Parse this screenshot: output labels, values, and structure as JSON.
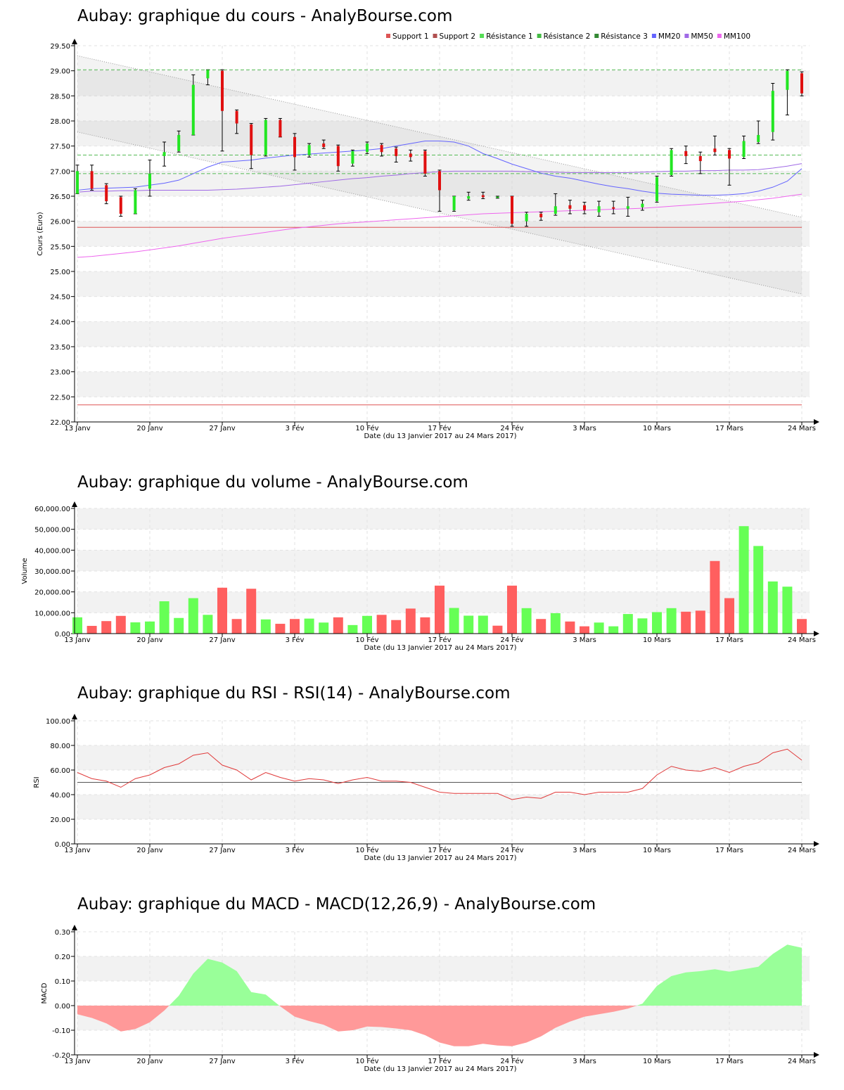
{
  "colors": {
    "up": "#22e622",
    "down": "#e01010",
    "vol_up": "#66ff55",
    "vol_down": "#ff5f5f",
    "rsi_line": "#e03a3a",
    "macd_pos": "#99ff99",
    "macd_neg": "#ff9999",
    "mm20": "#6464ff",
    "mm50": "#a06ae6",
    "mm100": "#ee66ee",
    "support": "#dd5555",
    "resistance": "#55bb55",
    "band": "#f2f2f2"
  },
  "x_axis": {
    "ticks": [
      {
        "label": "13 Janv",
        "i": 0
      },
      {
        "label": "20 Janv",
        "i": 5
      },
      {
        "label": "27 Janv",
        "i": 10
      },
      {
        "label": "3 Fév",
        "i": 15
      },
      {
        "label": "10 Fév",
        "i": 20
      },
      {
        "label": "17 Fév",
        "i": 25
      },
      {
        "label": "24 Fév",
        "i": 30
      },
      {
        "label": "3 Mars",
        "i": 35
      },
      {
        "label": "10 Mars",
        "i": 40
      },
      {
        "label": "17 Mars",
        "i": 45
      },
      {
        "label": "24 Mars",
        "i": 50
      }
    ],
    "label": "Date (du 13 Janvier 2017 au 24 Mars 2017)"
  },
  "legend": [
    {
      "label": "Support 1",
      "color": "#dd5555"
    },
    {
      "label": "Support 2",
      "color": "#b05050"
    },
    {
      "label": "Résistance 1",
      "color": "#55dd55"
    },
    {
      "label": "Résistance 2",
      "color": "#44bb44"
    },
    {
      "label": "Résistance 3",
      "color": "#338833"
    },
    {
      "label": "MM20",
      "color": "#6464ff"
    },
    {
      "label": "MM50",
      "color": "#a06ae6"
    },
    {
      "label": "MM100",
      "color": "#ee66ee"
    }
  ],
  "chart_data": [
    {
      "type": "candlestick",
      "title": "Aubay: graphique du cours - AnalyBourse.com",
      "ylabel": "Cours (Euro)",
      "ylim": [
        22.0,
        29.5
      ],
      "ytick_labels": [
        "22.00",
        "22.50",
        "23.00",
        "23.50",
        "24.00",
        "24.50",
        "25.00",
        "25.50",
        "26.00",
        "26.50",
        "27.00",
        "27.50",
        "28.00",
        "28.50",
        "29.00",
        "29.50"
      ],
      "grid": true,
      "legend_position": "top-right",
      "support_lines": [
        25.88,
        22.34
      ],
      "resistance_lines": [
        29.02,
        27.32,
        26.95
      ],
      "trend_channel": {
        "upper": [
          29.3,
          26.08
        ],
        "lower": [
          27.78,
          24.55
        ]
      },
      "candles": [
        {
          "o": 26.55,
          "h": 27.12,
          "l": 26.55,
          "c": 27.0
        },
        {
          "o": 27.0,
          "h": 27.12,
          "l": 26.62,
          "c": 26.65
        },
        {
          "o": 26.72,
          "h": 26.75,
          "l": 26.35,
          "c": 26.4
        },
        {
          "o": 26.48,
          "h": 26.5,
          "l": 26.1,
          "c": 26.15
        },
        {
          "o": 26.15,
          "h": 26.65,
          "l": 26.15,
          "c": 26.62
        },
        {
          "o": 26.65,
          "h": 27.22,
          "l": 26.5,
          "c": 26.95
        },
        {
          "o": 27.3,
          "h": 27.58,
          "l": 27.1,
          "c": 27.38
        },
        {
          "o": 27.4,
          "h": 27.8,
          "l": 27.38,
          "c": 27.72
        },
        {
          "o": 27.72,
          "h": 28.92,
          "l": 27.72,
          "c": 28.72
        },
        {
          "o": 28.85,
          "h": 29.02,
          "l": 28.72,
          "c": 29.02
        },
        {
          "o": 29.0,
          "h": 29.02,
          "l": 27.4,
          "c": 28.2
        },
        {
          "o": 28.2,
          "h": 28.22,
          "l": 27.75,
          "c": 27.95
        },
        {
          "o": 27.93,
          "h": 27.95,
          "l": 27.05,
          "c": 27.32
        },
        {
          "o": 27.32,
          "h": 28.05,
          "l": 27.3,
          "c": 28.02
        },
        {
          "o": 28.02,
          "h": 28.05,
          "l": 27.68,
          "c": 27.68
        },
        {
          "o": 27.68,
          "h": 27.75,
          "l": 27.02,
          "c": 27.28
        },
        {
          "o": 27.32,
          "h": 27.55,
          "l": 27.28,
          "c": 27.52
        },
        {
          "o": 27.55,
          "h": 27.62,
          "l": 27.45,
          "c": 27.48
        },
        {
          "o": 27.5,
          "h": 27.52,
          "l": 27.0,
          "c": 27.1
        },
        {
          "o": 27.15,
          "h": 27.42,
          "l": 27.1,
          "c": 27.4
        },
        {
          "o": 27.38,
          "h": 27.58,
          "l": 27.35,
          "c": 27.55
        },
        {
          "o": 27.52,
          "h": 27.55,
          "l": 27.3,
          "c": 27.38
        },
        {
          "o": 27.45,
          "h": 27.48,
          "l": 27.18,
          "c": 27.3
        },
        {
          "o": 27.35,
          "h": 27.42,
          "l": 27.2,
          "c": 27.28
        },
        {
          "o": 27.4,
          "h": 27.42,
          "l": 26.9,
          "c": 26.95
        },
        {
          "o": 27.0,
          "h": 27.02,
          "l": 26.2,
          "c": 26.62
        },
        {
          "o": 26.22,
          "h": 26.5,
          "l": 26.2,
          "c": 26.5
        },
        {
          "o": 26.45,
          "h": 26.58,
          "l": 26.42,
          "c": 26.5
        },
        {
          "o": 26.52,
          "h": 26.58,
          "l": 26.45,
          "c": 26.48
        },
        {
          "o": 26.48,
          "h": 26.5,
          "l": 26.46,
          "c": 26.49
        },
        {
          "o": 26.5,
          "h": 26.5,
          "l": 25.9,
          "c": 25.95
        },
        {
          "o": 26.0,
          "h": 26.18,
          "l": 25.9,
          "c": 26.15
        },
        {
          "o": 26.15,
          "h": 26.18,
          "l": 26.02,
          "c": 26.08
        },
        {
          "o": 26.15,
          "h": 26.55,
          "l": 26.12,
          "c": 26.3
        },
        {
          "o": 26.32,
          "h": 26.42,
          "l": 26.15,
          "c": 26.25
        },
        {
          "o": 26.32,
          "h": 26.38,
          "l": 26.15,
          "c": 26.22
        },
        {
          "o": 26.18,
          "h": 26.4,
          "l": 26.1,
          "c": 26.3
        },
        {
          "o": 26.28,
          "h": 26.4,
          "l": 26.15,
          "c": 26.25
        },
        {
          "o": 26.25,
          "h": 26.48,
          "l": 26.1,
          "c": 26.3
        },
        {
          "o": 26.28,
          "h": 26.42,
          "l": 26.22,
          "c": 26.35
        },
        {
          "o": 26.4,
          "h": 26.9,
          "l": 26.38,
          "c": 26.88
        },
        {
          "o": 26.92,
          "h": 27.45,
          "l": 26.9,
          "c": 27.42
        },
        {
          "o": 27.4,
          "h": 27.5,
          "l": 27.15,
          "c": 27.3
        },
        {
          "o": 27.3,
          "h": 27.38,
          "l": 26.95,
          "c": 27.2
        },
        {
          "o": 27.45,
          "h": 27.7,
          "l": 27.32,
          "c": 27.38
        },
        {
          "o": 27.42,
          "h": 27.45,
          "l": 26.72,
          "c": 27.25
        },
        {
          "o": 27.28,
          "h": 27.7,
          "l": 27.25,
          "c": 27.6
        },
        {
          "o": 27.58,
          "h": 28.0,
          "l": 27.55,
          "c": 27.72
        },
        {
          "o": 27.78,
          "h": 28.75,
          "l": 27.62,
          "c": 28.6
        },
        {
          "o": 28.62,
          "h": 29.02,
          "l": 28.12,
          "c": 29.0
        },
        {
          "o": 28.95,
          "h": 28.98,
          "l": 28.5,
          "c": 28.55
        }
      ],
      "mm20": [
        26.62,
        26.65,
        26.66,
        26.67,
        26.68,
        26.72,
        26.76,
        26.82,
        26.95,
        27.08,
        27.18,
        27.2,
        27.22,
        27.26,
        27.29,
        27.32,
        27.34,
        27.36,
        27.38,
        27.4,
        27.42,
        27.45,
        27.5,
        27.55,
        27.6,
        27.6,
        27.58,
        27.5,
        27.35,
        27.25,
        27.14,
        27.05,
        26.96,
        26.9,
        26.86,
        26.8,
        26.74,
        26.69,
        26.65,
        26.6,
        26.56,
        26.54,
        26.53,
        26.52,
        26.52,
        26.53,
        26.55,
        26.6,
        26.68,
        26.8,
        27.05
      ],
      "mm50": [
        26.58,
        26.6,
        26.6,
        26.61,
        26.61,
        26.62,
        26.62,
        26.62,
        26.62,
        26.62,
        26.63,
        26.64,
        26.66,
        26.68,
        26.7,
        26.73,
        26.76,
        26.79,
        26.82,
        26.85,
        26.87,
        26.9,
        26.92,
        26.95,
        26.97,
        26.99,
        27.0,
        27.0,
        27.0,
        27.0,
        27.0,
        26.99,
        26.99,
        26.98,
        26.97,
        26.97,
        26.97,
        26.97,
        26.97,
        26.98,
        26.99,
        27.0,
        27.0,
        27.01,
        27.01,
        27.02,
        27.02,
        27.03,
        27.06,
        27.1,
        27.15
      ],
      "mm100": [
        25.28,
        25.3,
        25.33,
        25.36,
        25.39,
        25.43,
        25.47,
        25.51,
        25.56,
        25.61,
        25.66,
        25.7,
        25.74,
        25.78,
        25.82,
        25.86,
        25.89,
        25.92,
        25.95,
        25.97,
        25.99,
        26.01,
        26.03,
        26.05,
        26.07,
        26.09,
        26.11,
        26.13,
        26.15,
        26.16,
        26.17,
        26.18,
        26.19,
        26.2,
        26.21,
        26.22,
        26.23,
        26.24,
        26.25,
        26.26,
        26.28,
        26.3,
        26.32,
        26.34,
        26.36,
        26.38,
        26.4,
        26.43,
        26.46,
        26.5,
        26.54
      ]
    },
    {
      "type": "bar",
      "title": "Aubay: graphique du volume - AnalyBourse.com",
      "ylabel": "Volume",
      "ylim": [
        0,
        60000
      ],
      "ytick_labels": [
        "0.00",
        "10,000.00",
        "20,000.00",
        "30,000.00",
        "40,000.00",
        "50,000.00",
        "60,000.00"
      ],
      "grid": true,
      "values": [
        7800,
        3700,
        6000,
        8500,
        5400,
        5800,
        15500,
        7500,
        17000,
        9000,
        22000,
        7000,
        21500,
        6800,
        4700,
        7000,
        7200,
        5300,
        7800,
        4100,
        8500,
        9000,
        6500,
        12000,
        7800,
        23000,
        12300,
        8600,
        8600,
        3800,
        23000,
        12200,
        7000,
        9800,
        5800,
        3500,
        5300,
        3500,
        9400,
        7300,
        10300,
        12200,
        10500,
        11000,
        34800,
        17000,
        51500,
        42000,
        25000,
        22500,
        7000
      ],
      "up": [
        true,
        false,
        false,
        false,
        true,
        true,
        true,
        true,
        true,
        true,
        false,
        false,
        false,
        true,
        false,
        false,
        true,
        true,
        false,
        true,
        true,
        false,
        false,
        false,
        false,
        false,
        true,
        true,
        true,
        false,
        false,
        true,
        false,
        true,
        false,
        false,
        true,
        true,
        true,
        true,
        true,
        true,
        false,
        false,
        false,
        false,
        true,
        true,
        true,
        true,
        false
      ]
    },
    {
      "type": "line",
      "title": "Aubay: graphique du RSI - RSI(14) - AnalyBourse.com",
      "ylabel": "RSI",
      "ylim": [
        0,
        100
      ],
      "ytick_labels": [
        "0.00",
        "20.00",
        "40.00",
        "60.00",
        "80.00",
        "100.00"
      ],
      "grid": true,
      "reference_line": 50,
      "values": [
        58,
        53,
        51,
        46,
        53,
        56,
        62,
        65,
        72,
        74,
        64,
        60,
        52,
        58,
        54,
        51,
        53,
        52,
        49,
        52,
        54,
        51,
        51,
        50,
        46,
        42,
        41,
        41,
        41,
        41,
        36,
        38,
        37,
        42,
        42,
        40,
        42,
        42,
        42,
        45,
        56,
        63,
        60,
        59,
        62,
        58,
        63,
        66,
        74,
        77,
        68
      ]
    },
    {
      "type": "area",
      "title": "Aubay: graphique du MACD - MACD(12,26,9) - AnalyBourse.com",
      "ylabel": "MACD",
      "ylim": [
        -0.2,
        0.3
      ],
      "ytick_labels": [
        "-0.20",
        "-0.10",
        "0.00",
        "0.10",
        "0.20",
        "0.30"
      ],
      "grid": true,
      "values": [
        -0.035,
        -0.05,
        -0.072,
        -0.105,
        -0.095,
        -0.068,
        -0.02,
        0.04,
        0.13,
        0.19,
        0.175,
        0.14,
        0.055,
        0.045,
        -0.003,
        -0.045,
        -0.063,
        -0.078,
        -0.105,
        -0.1,
        -0.085,
        -0.087,
        -0.093,
        -0.1,
        -0.12,
        -0.15,
        -0.165,
        -0.165,
        -0.155,
        -0.162,
        -0.165,
        -0.15,
        -0.125,
        -0.09,
        -0.065,
        -0.045,
        -0.035,
        -0.025,
        -0.012,
        0.008,
        0.08,
        0.12,
        0.135,
        0.14,
        0.148,
        0.138,
        0.148,
        0.158,
        0.21,
        0.248,
        0.235
      ]
    }
  ]
}
